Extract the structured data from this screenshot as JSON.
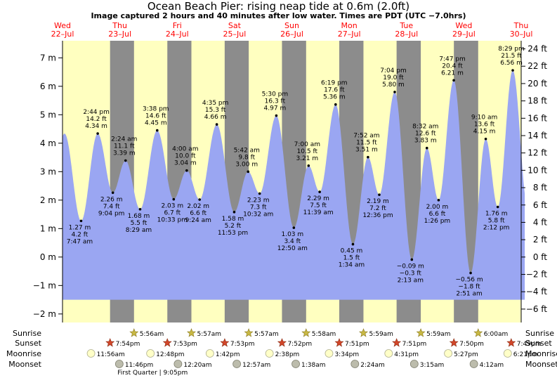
{
  "chart_data": {
    "type": "area",
    "title": "Ocean Beach Pier: rising  neap tide at 0.6m (2.0ft)",
    "subtitle": "Image captured 2 hours and 40 minutes after low water. Times are PDT (UTC −7.0hrs)",
    "ylim_m": [
      -2.3,
      7.6
    ],
    "yticks_m": [
      {
        "v": 7,
        "label": "7 m"
      },
      {
        "v": 6,
        "label": "6 m"
      },
      {
        "v": 5,
        "label": "5 m"
      },
      {
        "v": 4,
        "label": "4 m"
      },
      {
        "v": 3,
        "label": "3 m"
      },
      {
        "v": 2,
        "label": "2 m"
      },
      {
        "v": 1,
        "label": "1 m"
      },
      {
        "v": 0,
        "label": "0 m"
      },
      {
        "v": -1,
        "label": "−1 m"
      },
      {
        "v": -2,
        "label": "−2 m"
      }
    ],
    "yticks_ft": [
      {
        "v": 24,
        "label": "24 ft"
      },
      {
        "v": 22,
        "label": "22 ft"
      },
      {
        "v": 20,
        "label": "20 ft"
      },
      {
        "v": 18,
        "label": "18 ft"
      },
      {
        "v": 16,
        "label": "16 ft"
      },
      {
        "v": 14,
        "label": "14 ft"
      },
      {
        "v": 12,
        "label": "12 ft"
      },
      {
        "v": 10,
        "label": "10 ft"
      },
      {
        "v": 8,
        "label": "8 ft"
      },
      {
        "v": 6,
        "label": "6 ft"
      },
      {
        "v": 4,
        "label": "4 ft"
      },
      {
        "v": 2,
        "label": "2 ft"
      },
      {
        "v": 0,
        "label": "0 ft"
      },
      {
        "v": -2,
        "label": "−2 ft"
      },
      {
        "v": -4,
        "label": "−4 ft"
      },
      {
        "v": -6,
        "label": "−6 ft"
      }
    ],
    "x_range_hours": [
      0,
      192
    ],
    "days": [
      {
        "name": "Wed",
        "date": "22–Jul",
        "hour": 0
      },
      {
        "name": "Thu",
        "date": "23–Jul",
        "hour": 24
      },
      {
        "name": "Fri",
        "date": "24–Jul",
        "hour": 48
      },
      {
        "name": "Sat",
        "date": "25–Jul",
        "hour": 72
      },
      {
        "name": "Sun",
        "date": "26–Jul",
        "hour": 96
      },
      {
        "name": "Mon",
        "date": "27–Jul",
        "hour": 120
      },
      {
        "name": "Tue",
        "date": "28–Jul",
        "hour": 144
      },
      {
        "name": "Wed",
        "date": "29–Jul",
        "hour": 168
      },
      {
        "name": "Thu",
        "date": "30–Jul",
        "hour": 192
      }
    ],
    "nights": [
      [
        19.9,
        29.93
      ],
      [
        43.88,
        53.95
      ],
      [
        67.88,
        77.95
      ],
      [
        91.87,
        101.97
      ],
      [
        115.85,
        125.98
      ],
      [
        139.85,
        149.98
      ],
      [
        163.83,
        174.0
      ]
    ],
    "tides": [
      {
        "hour": 7.78,
        "m": 1.27,
        "lines": [
          "1.27 m",
          "4.2 ft",
          "7:47 am"
        ],
        "pos": "below"
      },
      {
        "hour": 14.73,
        "m": 4.34,
        "lines": [
          "2:44 pm",
          "14.2 ft",
          "4.34 m"
        ],
        "pos": "above"
      },
      {
        "hour": 21.07,
        "m": 2.26,
        "lines": [
          "2.26 m",
          "7.4 ft",
          "9:04 pm"
        ],
        "pos": "below"
      },
      {
        "hour": 26.4,
        "m": 3.39,
        "lines": [
          "2:24 am",
          "11.1 ft",
          "3.39 m"
        ],
        "pos": "above"
      },
      {
        "hour": 32.48,
        "m": 1.68,
        "lines": [
          "1.68 m",
          "5.5 ft",
          "8:29 am"
        ],
        "pos": "below"
      },
      {
        "hour": 39.63,
        "m": 4.45,
        "lines": [
          "3:38 pm",
          "14.6 ft",
          "4.45 m"
        ],
        "pos": "above"
      },
      {
        "hour": 46.55,
        "m": 2.03,
        "lines": [
          "2.03 m",
          "6.7 ft",
          "10:33 pm"
        ],
        "pos": "below"
      },
      {
        "hour": 52.0,
        "m": 3.04,
        "lines": [
          "4:00 am",
          "10.0 ft",
          "3.04 m"
        ],
        "pos": "above"
      },
      {
        "hour": 57.4,
        "m": 2.02,
        "lines": [
          "2.02 m",
          "6.6 ft",
          "9:24 am"
        ],
        "pos": "below"
      },
      {
        "hour": 64.58,
        "m": 4.66,
        "lines": [
          "4:35 pm",
          "15.3 ft",
          "4.66 m"
        ],
        "pos": "above"
      },
      {
        "hour": 71.88,
        "m": 1.58,
        "lines": [
          "1.58 m",
          "5.2 ft",
          "11:53 pm"
        ],
        "pos": "below"
      },
      {
        "hour": 77.7,
        "m": 3.0,
        "lines": [
          "5:42 am",
          "9.8 ft",
          "3.00 m"
        ],
        "pos": "above"
      },
      {
        "hour": 82.53,
        "m": 2.23,
        "lines": [
          "2.23 m",
          "7.3 ft",
          "10:32 am"
        ],
        "pos": "below"
      },
      {
        "hour": 89.5,
        "m": 4.97,
        "lines": [
          "5:30 pm",
          "16.3 ft",
          "4.97 m"
        ],
        "pos": "above"
      },
      {
        "hour": 96.83,
        "m": 1.03,
        "lines": [
          "1.03 m",
          "3.4 ft",
          "12:50 am"
        ],
        "pos": "below"
      },
      {
        "hour": 103.0,
        "m": 3.21,
        "lines": [
          "7:00 am",
          "10.5 ft",
          "3.21 m"
        ],
        "pos": "above"
      },
      {
        "hour": 107.65,
        "m": 2.29,
        "lines": [
          "2.29 m",
          "7.5 ft",
          "11:39 am"
        ],
        "pos": "below"
      },
      {
        "hour": 114.32,
        "m": 5.36,
        "lines": [
          "6:19 pm",
          "17.6 ft",
          "5.36 m"
        ],
        "pos": "above"
      },
      {
        "hour": 121.57,
        "m": 0.45,
        "lines": [
          "0.45 m",
          "1.5 ft",
          "1:34 am"
        ],
        "pos": "below"
      },
      {
        "hour": 127.87,
        "m": 3.51,
        "lines": [
          "7:52 am",
          "11.5 ft",
          "3.51 m"
        ],
        "pos": "above"
      },
      {
        "hour": 132.6,
        "m": 2.19,
        "lines": [
          "2.19 m",
          "7.2 ft",
          "12:36 pm"
        ],
        "pos": "below"
      },
      {
        "hour": 139.07,
        "m": 5.8,
        "lines": [
          "7:04 pm",
          "19.0 ft",
          "5.80 m"
        ],
        "pos": "above"
      },
      {
        "hour": 146.22,
        "m": -0.09,
        "lines": [
          "−0.09 m",
          "−0.3 ft",
          "2:13 am"
        ],
        "pos": "below"
      },
      {
        "hour": 152.53,
        "m": 3.83,
        "lines": [
          "8:32 am",
          "12.6 ft",
          "3.83 m"
        ],
        "pos": "above"
      },
      {
        "hour": 157.43,
        "m": 2.0,
        "lines": [
          "2.00 m",
          "6.6 ft",
          "1:26 pm"
        ],
        "pos": "below"
      },
      {
        "hour": 163.78,
        "m": 6.21,
        "lines": [
          "7:47 pm",
          "20.4 ft",
          "6.21 m"
        ],
        "pos": "above"
      },
      {
        "hour": 170.85,
        "m": -0.56,
        "lines": [
          "−0.56 m",
          "−1.8 ft",
          "2:51 am"
        ],
        "pos": "below"
      },
      {
        "hour": 177.17,
        "m": 4.15,
        "lines": [
          "9:10 am",
          "13.6 ft",
          "4.15 m"
        ],
        "pos": "above"
      },
      {
        "hour": 182.2,
        "m": 1.76,
        "lines": [
          "1.76 m",
          "5.8 ft",
          "2:12 pm"
        ],
        "pos": "below"
      },
      {
        "hour": 188.48,
        "m": 6.56,
        "lines": [
          "8:29 pm",
          "21.5 ft",
          "6.56 m"
        ],
        "pos": "above"
      }
    ],
    "bottom_rows": {
      "labels": [
        "Sunrise",
        "Sunset",
        "Moonrise",
        "Moonset"
      ],
      "sunrise": [
        {
          "hour": 29.93,
          "label": "5:56am"
        },
        {
          "hour": 53.95,
          "label": "5:57am"
        },
        {
          "hour": 77.95,
          "label": "5:57am"
        },
        {
          "hour": 101.97,
          "label": "5:58am"
        },
        {
          "hour": 125.98,
          "label": "5:59am"
        },
        {
          "hour": 149.98,
          "label": "5:59am"
        },
        {
          "hour": 174.0,
          "label": "6:00am"
        }
      ],
      "sunset": [
        {
          "hour": 19.9,
          "label": "7:54pm"
        },
        {
          "hour": 43.88,
          "label": "7:53pm"
        },
        {
          "hour": 67.88,
          "label": "7:53pm"
        },
        {
          "hour": 91.87,
          "label": "7:52pm"
        },
        {
          "hour": 115.85,
          "label": "7:51pm"
        },
        {
          "hour": 139.85,
          "label": "7:51pm"
        },
        {
          "hour": 163.83,
          "label": "7:50pm"
        },
        {
          "hour": 187.82,
          "label": "7:49pm"
        }
      ],
      "moonrise": [
        {
          "hour": 11.93,
          "label": "11:56am"
        },
        {
          "hour": 36.8,
          "label": "12:48pm"
        },
        {
          "hour": 61.7,
          "label": "1:42pm"
        },
        {
          "hour": 86.63,
          "label": "2:38pm"
        },
        {
          "hour": 111.57,
          "label": "3:34pm"
        },
        {
          "hour": 136.52,
          "label": "4:31pm"
        },
        {
          "hour": 161.45,
          "label": "5:27pm"
        },
        {
          "hour": 186.35,
          "label": "6:21pm"
        }
      ],
      "moonset": [
        {
          "hour": 23.77,
          "label": "11:46pm"
        },
        {
          "hour": 48.33,
          "label": "12:20am"
        },
        {
          "hour": 72.95,
          "label": "12:57am"
        },
        {
          "hour": 97.63,
          "label": "1:38am"
        },
        {
          "hour": 122.4,
          "label": "2:24am"
        },
        {
          "hour": 147.25,
          "label": "3:15am"
        },
        {
          "hour": 172.2,
          "label": "4:12am"
        }
      ],
      "moon_phase": "First Quarter | 9:05pm"
    },
    "colors": {
      "day": "#ffffc0",
      "night": "#8c8c8c",
      "water": "#9aa6f2",
      "day_label": "#ff0000",
      "sun": "#c8b844",
      "sunset": "#d2462a",
      "moonrise": "#ffffc8",
      "moonset": "#bcbcac"
    }
  }
}
